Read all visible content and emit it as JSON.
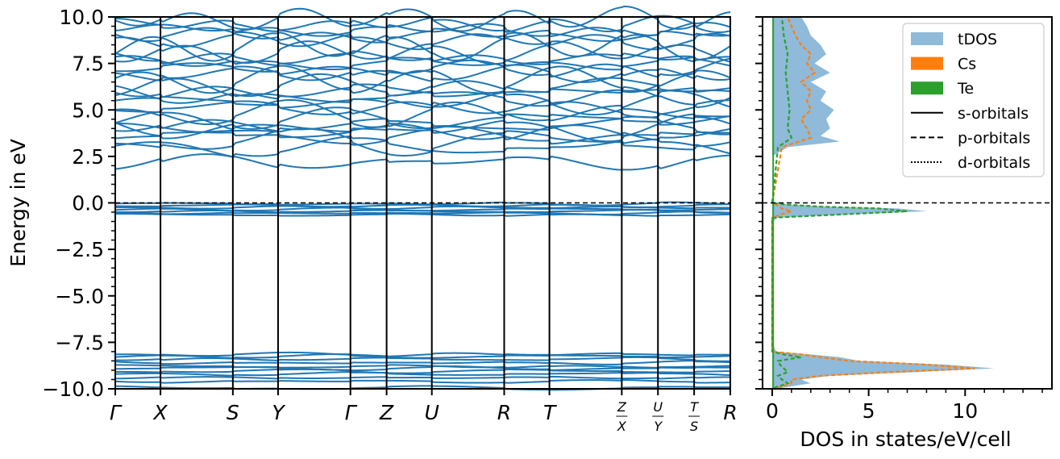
{
  "chart_data": [
    {
      "type": "line",
      "title": "",
      "xlabel": "",
      "ylabel": "Energy in eV",
      "ylim": [
        -10,
        10
      ],
      "yticks": [
        "10.0",
        "7.5",
        "5.0",
        "2.5",
        "0.0",
        "−2.5",
        "−5.0",
        "−7.5",
        "−10.0"
      ],
      "ytick_values": [
        10,
        7.5,
        5,
        2.5,
        0,
        -2.5,
        -5,
        -7.5,
        -10
      ],
      "kpoints": [
        {
          "label": "Γ",
          "pos": 0.0
        },
        {
          "label": "X",
          "pos": 0.5
        },
        {
          "label": "S",
          "pos": 1.3
        },
        {
          "label": "Y",
          "pos": 1.8
        },
        {
          "label": "Γ",
          "pos": 2.6
        },
        {
          "label": "Z",
          "pos": 3.0
        },
        {
          "label": "U",
          "pos": 3.5
        },
        {
          "label": "R",
          "pos": 4.3
        },
        {
          "label": "T",
          "pos": 4.8
        },
        {
          "label": "Z",
          "label2": "X",
          "pos": 5.6
        },
        {
          "label": "U",
          "label2": "Y",
          "pos": 6.0
        },
        {
          "label": "T",
          "label2": "S",
          "pos": 6.4
        },
        {
          "label": "R",
          "pos": 6.8
        }
      ],
      "band_color": "#1f77b4",
      "fermi_level": 0.0,
      "bands": {
        "valence_deep": [
          -9.95,
          -9.6,
          -9.4,
          -9.2,
          -9.05,
          -8.9,
          -8.8,
          -8.6,
          -8.4,
          -8.25,
          -8.15
        ],
        "valence_top": [
          -0.65,
          -0.55,
          -0.45,
          -0.35,
          -0.25,
          -0.15,
          -0.05
        ],
        "conduction": [
          2.2,
          3.0,
          3.3,
          3.6,
          3.8,
          4.0,
          4.2,
          4.5,
          4.8,
          5.1,
          5.4,
          5.7,
          6.0,
          6.3,
          6.6,
          6.9,
          7.2,
          7.5,
          7.8,
          8.1,
          8.4,
          8.7,
          9.0,
          9.3,
          9.6,
          9.9
        ]
      }
    },
    {
      "type": "area",
      "title": "",
      "xlabel": "DOS in states/eV/cell",
      "ylabel": "",
      "xlim": [
        -0.5,
        14.5
      ],
      "ylim": [
        -10,
        10
      ],
      "xticks": [
        "0",
        "5",
        "10"
      ],
      "xtick_values": [
        0,
        5,
        10
      ],
      "fermi_level": 0.0,
      "legend_position": "top-right",
      "legend": [
        {
          "label": "tDOS",
          "kind": "patch",
          "color": "#8fbad9"
        },
        {
          "label": "Cs",
          "kind": "patch",
          "color": "#ff7f0e"
        },
        {
          "label": "Te",
          "kind": "patch",
          "color": "#2ca02c"
        },
        {
          "label": "s-orbitals",
          "kind": "line",
          "style": "solid"
        },
        {
          "label": "p-orbitals",
          "kind": "line",
          "style": "dashed"
        },
        {
          "label": "d-orbitals",
          "kind": "line",
          "style": "dotted"
        }
      ],
      "series": [
        {
          "name": "tDOS",
          "color": "#8fbad9",
          "energy": [
            -9.95,
            -9.7,
            -9.5,
            -9.3,
            -9.1,
            -8.9,
            -8.7,
            -8.5,
            -8.3,
            -8.15,
            -8.0,
            -7.5,
            -1.0,
            -0.8,
            -0.6,
            -0.45,
            -0.3,
            -0.2,
            -0.1,
            0.0,
            2.5,
            3.0,
            3.3,
            3.6,
            4.0,
            4.5,
            5.0,
            5.5,
            6.0,
            6.5,
            7.0,
            7.5,
            8.0,
            8.5,
            9.0,
            9.5,
            10.0
          ],
          "values": [
            0.5,
            2.0,
            1.5,
            3.0,
            7.5,
            11.5,
            9.0,
            4.5,
            3.5,
            2.0,
            0.2,
            0.0,
            0.0,
            0.3,
            4.5,
            8.0,
            6.5,
            3.0,
            1.0,
            0.0,
            0.0,
            0.8,
            3.5,
            2.5,
            3.0,
            2.8,
            3.2,
            2.5,
            2.8,
            2.0,
            3.0,
            2.2,
            2.8,
            2.5,
            2.0,
            1.8,
            1.5
          ]
        },
        {
          "name": "Cs",
          "color": "#ff7f0e",
          "energy": [
            -9.95,
            -9.7,
            -9.5,
            -9.3,
            -9.1,
            -8.9,
            -8.7,
            -8.5,
            -8.3,
            -8.15,
            -8.0,
            -0.8,
            -0.6,
            -0.45,
            -0.3,
            -0.1,
            0.0,
            3.0,
            3.5,
            4.0,
            4.5,
            5.0,
            5.5,
            6.0,
            6.5,
            7.0,
            7.5,
            8.0,
            8.5,
            9.0,
            9.5,
            10.0
          ],
          "values": [
            0.3,
            1.0,
            1.0,
            2.5,
            6.0,
            10.5,
            8.0,
            4.0,
            2.5,
            1.5,
            0.0,
            0.0,
            0.5,
            1.0,
            0.5,
            0.2,
            0.0,
            0.5,
            2.0,
            1.8,
            1.5,
            2.0,
            1.8,
            2.0,
            1.5,
            2.2,
            1.8,
            2.0,
            1.5,
            1.2,
            1.0,
            0.8
          ]
        },
        {
          "name": "Te",
          "color": "#2ca02c",
          "energy": [
            -9.95,
            -9.7,
            -9.5,
            -9.3,
            -9.1,
            -8.9,
            -8.7,
            -8.5,
            -8.3,
            -8.15,
            -8.0,
            -0.8,
            -0.6,
            -0.45,
            -0.3,
            -0.2,
            -0.1,
            0.0,
            3.0,
            3.5,
            4.0,
            5.0,
            6.0,
            7.0,
            8.0,
            9.0,
            10.0
          ],
          "values": [
            0.1,
            0.8,
            0.5,
            0.3,
            0.8,
            0.6,
            0.4,
            0.3,
            1.5,
            0.6,
            0.0,
            0.0,
            4.0,
            7.0,
            5.5,
            2.5,
            0.8,
            0.0,
            0.3,
            1.0,
            0.8,
            0.9,
            0.8,
            0.7,
            0.8,
            0.6,
            0.5
          ]
        }
      ]
    }
  ]
}
